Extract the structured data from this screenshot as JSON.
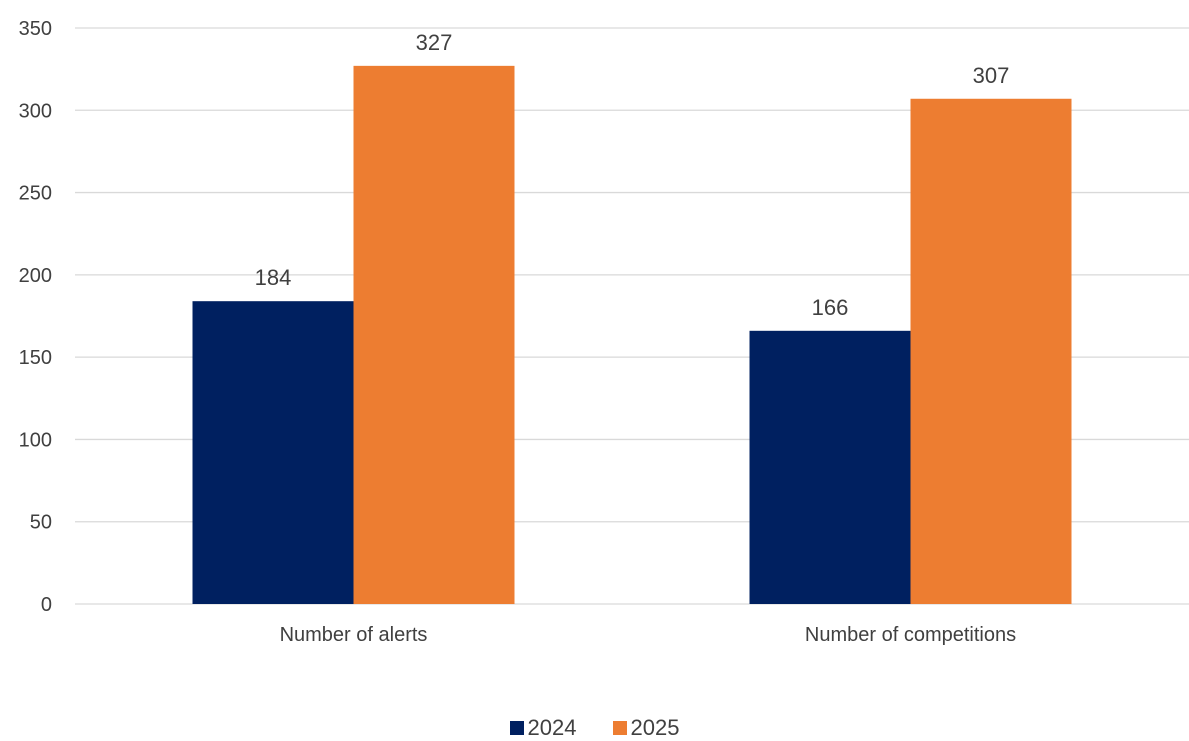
{
  "chart_data": {
    "type": "bar",
    "categories": [
      "Number of alerts",
      "Number of competitions"
    ],
    "series": [
      {
        "name": "2024",
        "values": [
          184,
          166
        ],
        "color": "#002060"
      },
      {
        "name": "2025",
        "values": [
          327,
          307
        ],
        "color": "#ED7D31"
      }
    ],
    "ylim": [
      0,
      350
    ],
    "yticks": [
      "0",
      "50",
      "100",
      "150",
      "200",
      "250",
      "300",
      "350"
    ],
    "grid": true,
    "legend_position": "bottom"
  }
}
